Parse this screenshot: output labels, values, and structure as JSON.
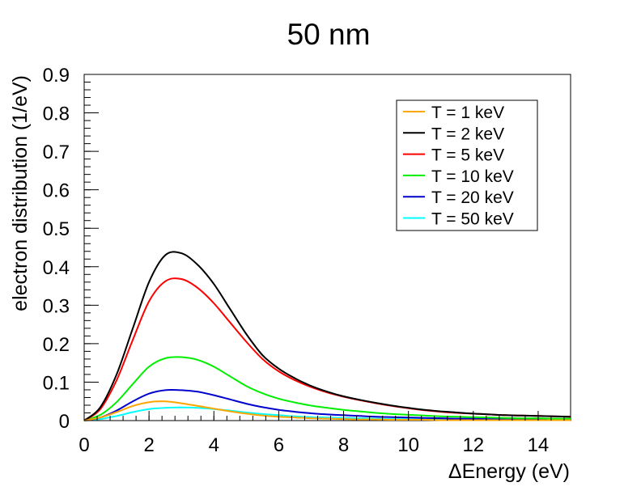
{
  "chart_data": {
    "type": "line",
    "title": "50 nm",
    "xlabel": "ΔEnergy (eV)",
    "ylabel": "electron distribution (1/eV)",
    "xlim": [
      0,
      15
    ],
    "ylim": [
      0,
      0.9
    ],
    "x_ticks": [
      0,
      2,
      4,
      6,
      8,
      10,
      12,
      14
    ],
    "x_tick_labels": [
      "0",
      "2",
      "4",
      "6",
      "8",
      "10",
      "12",
      "14"
    ],
    "y_ticks": [
      0,
      0.1,
      0.2,
      0.3,
      0.4,
      0.5,
      0.6,
      0.7,
      0.8,
      0.9
    ],
    "y_tick_labels": [
      "0",
      "0.1",
      "0.2",
      "0.3",
      "0.4",
      "0.5",
      "0.6",
      "0.7",
      "0.8",
      "0.9"
    ],
    "grid": false,
    "legend_position": "top-right",
    "x": [
      0,
      0.5,
      1,
      1.5,
      2,
      2.5,
      3,
      3.5,
      4,
      4.5,
      5,
      5.5,
      6,
      6.5,
      7,
      7.5,
      8,
      8.5,
      9,
      9.5,
      10,
      10.5,
      11,
      11.5,
      12,
      12.5,
      13,
      13.5,
      14,
      14.5,
      15
    ],
    "series": [
      {
        "name": "T = 1 keV",
        "color": "#ffa500",
        "values": [
          0,
          0.008,
          0.022,
          0.038,
          0.048,
          0.05,
          0.045,
          0.038,
          0.031,
          0.024,
          0.018,
          0.013,
          0.01,
          0.008,
          0.006,
          0.005,
          0.004,
          0.003,
          0.003,
          0.002,
          0.002,
          0.002,
          0.001,
          0.001,
          0.001,
          0.001,
          0.001,
          0.001,
          0.001,
          0.001,
          0.001
        ]
      },
      {
        "name": "T = 2 keV",
        "color": "#000000",
        "values": [
          0,
          0.035,
          0.12,
          0.24,
          0.36,
          0.43,
          0.435,
          0.405,
          0.355,
          0.29,
          0.225,
          0.17,
          0.135,
          0.11,
          0.09,
          0.075,
          0.063,
          0.054,
          0.046,
          0.039,
          0.033,
          0.028,
          0.024,
          0.021,
          0.018,
          0.016,
          0.014,
          0.013,
          0.012,
          0.011,
          0.01
        ]
      },
      {
        "name": "T = 5 keV",
        "color": "#ff0000",
        "values": [
          0,
          0.03,
          0.105,
          0.21,
          0.31,
          0.362,
          0.368,
          0.345,
          0.305,
          0.255,
          0.205,
          0.16,
          0.128,
          0.105,
          0.087,
          0.073,
          0.062,
          0.053,
          0.045,
          0.038,
          0.032,
          0.027,
          0.023,
          0.02,
          0.018,
          0.016,
          0.014,
          0.013,
          0.012,
          0.011,
          0.01
        ]
      },
      {
        "name": "T = 10 keV",
        "color": "#00ee00",
        "values": [
          0,
          0.015,
          0.048,
          0.095,
          0.14,
          0.162,
          0.165,
          0.158,
          0.14,
          0.115,
          0.09,
          0.071,
          0.057,
          0.047,
          0.039,
          0.033,
          0.028,
          0.024,
          0.02,
          0.017,
          0.015,
          0.013,
          0.011,
          0.01,
          0.009,
          0.008,
          0.007,
          0.006,
          0.006,
          0.005,
          0.005
        ]
      },
      {
        "name": "T = 20 keV",
        "color": "#0000cc",
        "values": [
          0,
          0.008,
          0.026,
          0.05,
          0.07,
          0.079,
          0.079,
          0.075,
          0.066,
          0.055,
          0.044,
          0.035,
          0.028,
          0.023,
          0.019,
          0.016,
          0.014,
          0.012,
          0.01,
          0.009,
          0.008,
          0.007,
          0.006,
          0.005,
          0.005,
          0.004,
          0.004,
          0.003,
          0.003,
          0.003,
          0.003
        ]
      },
      {
        "name": "T = 50 keV",
        "color": "#00ffff",
        "values": [
          0,
          0.004,
          0.012,
          0.022,
          0.03,
          0.033,
          0.034,
          0.033,
          0.03,
          0.026,
          0.021,
          0.017,
          0.014,
          0.011,
          0.009,
          0.008,
          0.007,
          0.006,
          0.005,
          0.004,
          0.004,
          0.003,
          0.003,
          0.003,
          0.002,
          0.002,
          0.002,
          0.002,
          0.002,
          0.001,
          0.001
        ]
      }
    ]
  }
}
